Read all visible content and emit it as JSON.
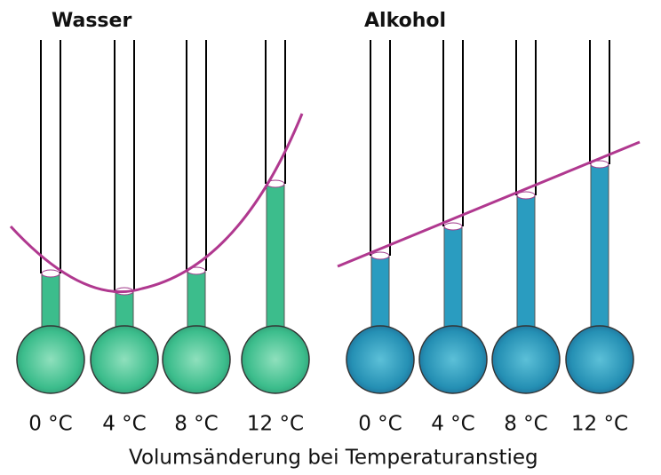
{
  "panels": [
    {
      "title": "Wasser",
      "labels": [
        "0 °C",
        "4 °C",
        "8 °C",
        "12 °C"
      ]
    },
    {
      "title": "Alkohol",
      "labels": [
        "0 °C",
        "4 °C",
        "8 °C",
        "12 °C"
      ]
    }
  ],
  "caption": "Volumsänderung bei Temperaturanstieg"
}
